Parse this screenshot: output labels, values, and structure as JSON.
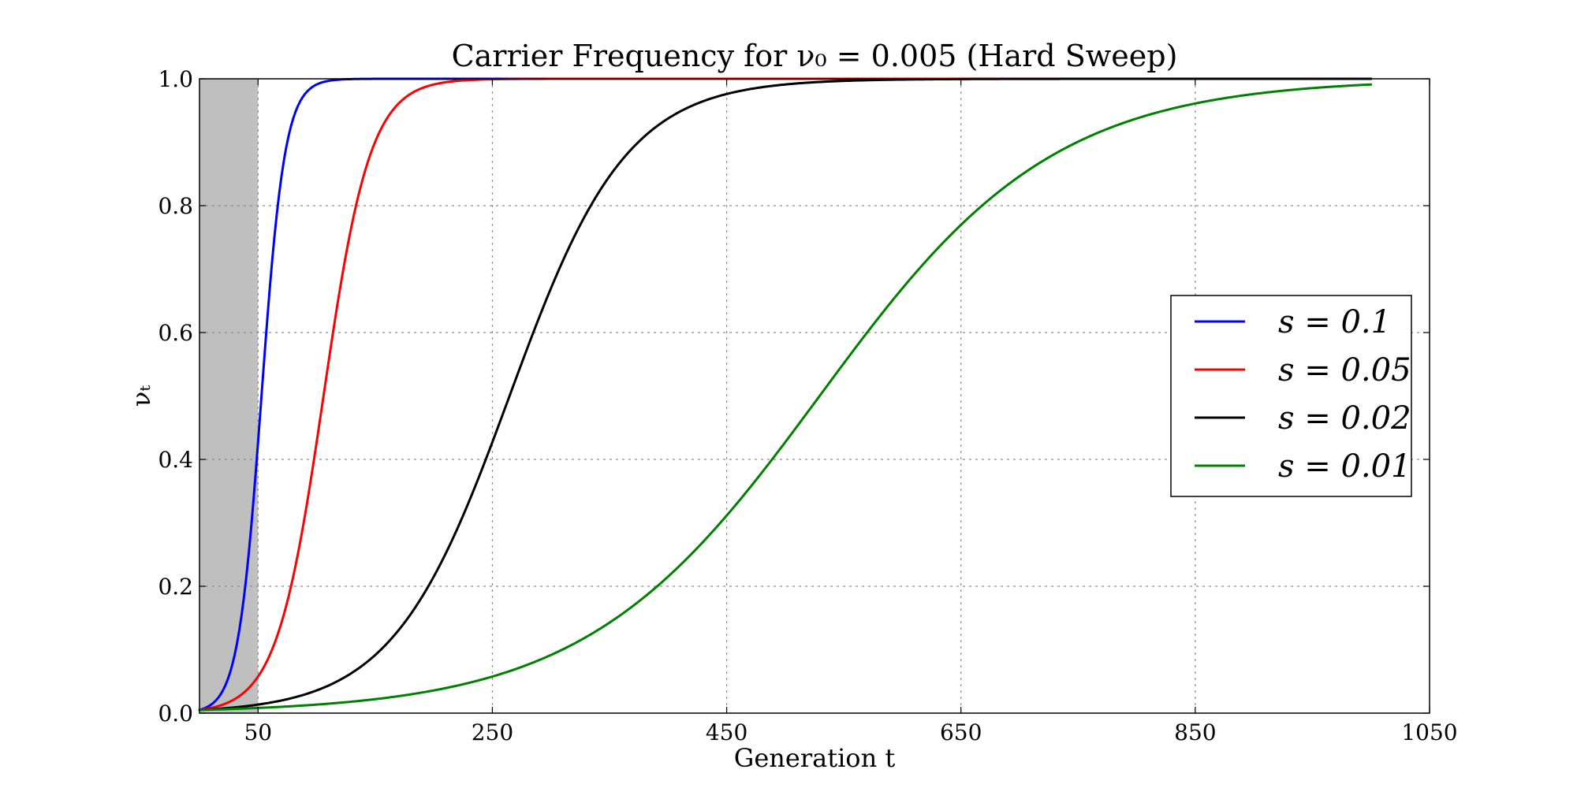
{
  "chart_data": {
    "type": "line",
    "title": "Carrier Frequency for ν₀ = 0.005 (Hard Sweep)",
    "xlabel": "Generation t",
    "ylabel": "νₜ",
    "xlim": [
      0,
      1050
    ],
    "ylim": [
      0.0,
      1.0
    ],
    "x_ticks": [
      50,
      250,
      450,
      650,
      850,
      1050
    ],
    "y_ticks": [
      0.0,
      0.2,
      0.4,
      0.6,
      0.8,
      1.0
    ],
    "x_tick_labels": [
      "50",
      "250",
      "450",
      "650",
      "850",
      "1050"
    ],
    "y_tick_labels": [
      "0.0",
      "0.2",
      "0.4",
      "0.6",
      "0.8",
      "1.0"
    ],
    "grid": true,
    "shaded_region": {
      "x_start": 0,
      "x_end": 50,
      "color": "#bfbfbf"
    },
    "legend_position": "center-right",
    "initial_frequency": 0.005,
    "x_max_data": 1000,
    "series": [
      {
        "name": "s = 0.1",
        "s": 0.1,
        "color": "#0000ff"
      },
      {
        "name": "s = 0.05",
        "s": 0.05,
        "color": "#ff0000"
      },
      {
        "name": "s = 0.02",
        "s": 0.02,
        "color": "#000000"
      },
      {
        "name": "s = 0.01",
        "s": 0.01,
        "color": "#008000"
      }
    ]
  }
}
